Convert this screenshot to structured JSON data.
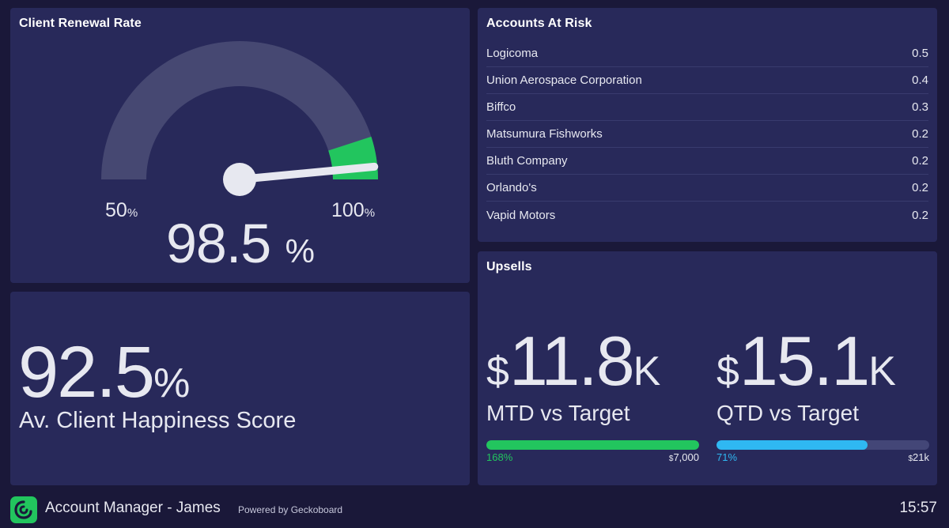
{
  "renewal": {
    "title": "Client Renewal Rate",
    "min": "50",
    "max": "100",
    "min_unit": "%",
    "max_unit": "%",
    "value": "98.5",
    "unit": "%",
    "value_number": 98.5,
    "min_number": 50,
    "max_number": 100,
    "colors": {
      "track": "#464872",
      "goal": "#22c55e",
      "needle": "#e7e8f0"
    }
  },
  "happiness": {
    "value": "92.5",
    "unit": "%",
    "label": "Av. Client Happiness Score"
  },
  "risk": {
    "title": "Accounts At Risk",
    "rows": [
      {
        "name": "Logicoma",
        "value": "0.5"
      },
      {
        "name": "Union Aerospace Corporation",
        "value": "0.4"
      },
      {
        "name": "Biffco",
        "value": "0.3"
      },
      {
        "name": "Matsumura Fishworks",
        "value": "0.2"
      },
      {
        "name": "Bluth Company",
        "value": "0.2"
      },
      {
        "name": "Orlando's",
        "value": "0.2"
      },
      {
        "name": "Vapid Motors",
        "value": "0.2"
      }
    ]
  },
  "upsells": {
    "title": "Upsells",
    "mtd": {
      "prefix": "$",
      "value": "11.8",
      "suffix": "K",
      "label": "MTD vs Target",
      "percent": "168%",
      "fill_percent": 100,
      "target_currency": "$",
      "target": "7,000",
      "color": "#22c55e"
    },
    "qtd": {
      "prefix": "$",
      "value": "15.1",
      "suffix": "K",
      "label": "QTD vs Target",
      "percent": "71%",
      "fill_percent": 71,
      "target_currency": "$",
      "target": "21k",
      "color": "#2fb8f2"
    }
  },
  "footer": {
    "title": "Account Manager - James",
    "powered": "Powered by Geckoboard",
    "time": "15:57",
    "logo_icon": "geckoboard-logo-icon"
  }
}
